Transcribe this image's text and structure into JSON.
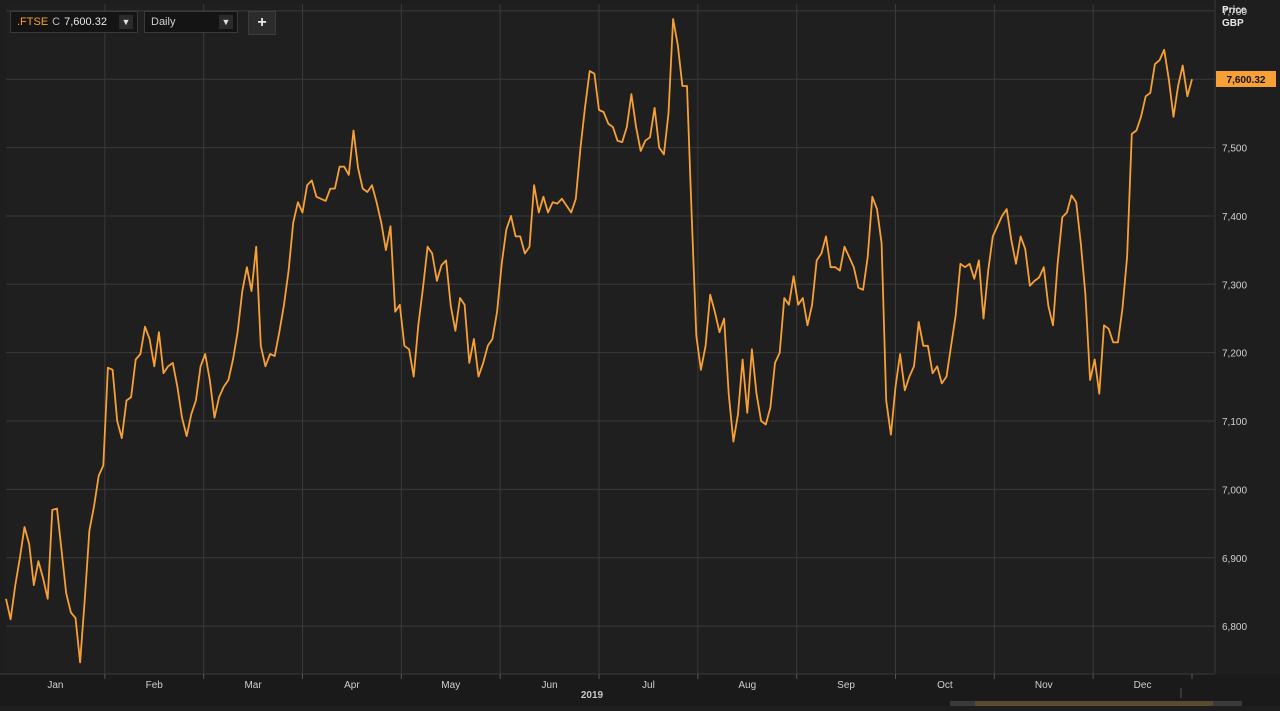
{
  "toolbar": {
    "instrument": ".FTSE",
    "close_tag": "C",
    "close_value": "7,600.32",
    "period": "Daily",
    "add_label": "+"
  },
  "colors": {
    "background": "#1e1e1e",
    "grid": "#3a3a3a",
    "series": "#f7a035",
    "label_bg": "#f7a035"
  },
  "chart_data": {
    "type": "line",
    "axis_title": "Price",
    "axis_unit": "GBP",
    "year_label": "2019",
    "yticks": [
      "6,800",
      "6,900",
      "7,000",
      "7,100",
      "7,200",
      "7,300",
      "7,400",
      "7,500",
      "7,600",
      "7,700"
    ],
    "ylim": [
      6730,
      7710
    ],
    "months": [
      "Jan",
      "Feb",
      "Mar",
      "Apr",
      "May",
      "Jun",
      "Jul",
      "Aug",
      "Sep",
      "Oct",
      "Nov",
      "Dec"
    ],
    "last_value_label": "7,600.32",
    "grid": true,
    "series": [
      {
        "values": [
          6840,
          6810,
          6860,
          6900,
          6945,
          6920,
          6860,
          6895,
          6870,
          6840,
          6970,
          6972,
          6910,
          6848,
          6820,
          6812,
          6747,
          6840,
          6940,
          6975,
          7020,
          7035,
          7178,
          7175,
          7100,
          7075,
          7130,
          7135,
          7190,
          7198,
          7238,
          7220,
          7180,
          7230,
          7170,
          7180,
          7185,
          7150,
          7105,
          7078,
          7110,
          7130,
          7180,
          7198,
          7160,
          7105,
          7135,
          7150,
          7160,
          7190,
          7230,
          7290,
          7325,
          7290,
          7355,
          7210,
          7180,
          7198,
          7195,
          7230,
          7270,
          7320,
          7390,
          7420,
          7405,
          7445,
          7452,
          7428,
          7425,
          7422,
          7440,
          7440,
          7472,
          7472,
          7460,
          7525,
          7470,
          7440,
          7435,
          7445,
          7420,
          7390,
          7350,
          7385,
          7260,
          7270,
          7210,
          7205,
          7165,
          7240,
          7295,
          7355,
          7345,
          7305,
          7328,
          7335,
          7268,
          7232,
          7280,
          7270,
          7185,
          7220,
          7165,
          7185,
          7210,
          7220,
          7260,
          7330,
          7380,
          7400,
          7370,
          7370,
          7345,
          7355,
          7445,
          7405,
          7428,
          7405,
          7420,
          7418,
          7425,
          7415,
          7405,
          7425,
          7500,
          7560,
          7612,
          7608,
          7555,
          7552,
          7535,
          7530,
          7510,
          7508,
          7530,
          7578,
          7530,
          7495,
          7510,
          7515,
          7558,
          7500,
          7490,
          7550,
          7688,
          7650,
          7590,
          7590,
          7400,
          7225,
          7175,
          7210,
          7285,
          7260,
          7230,
          7250,
          7140,
          7070,
          7110,
          7190,
          7112,
          7205,
          7140,
          7100,
          7095,
          7120,
          7185,
          7200,
          7280,
          7270,
          7312,
          7270,
          7280,
          7240,
          7270,
          7335,
          7345,
          7370,
          7325,
          7325,
          7320,
          7355,
          7340,
          7325,
          7295,
          7292,
          7340,
          7428,
          7410,
          7360,
          7130,
          7080,
          7150,
          7198,
          7145,
          7165,
          7180,
          7245,
          7210,
          7210,
          7170,
          7180,
          7155,
          7165,
          7210,
          7255,
          7330,
          7325,
          7330,
          7308,
          7335,
          7250,
          7320,
          7370,
          7385,
          7400,
          7410,
          7365,
          7330,
          7370,
          7352,
          7298,
          7305,
          7310,
          7325,
          7268,
          7240,
          7330,
          7398,
          7405,
          7430,
          7420,
          7360,
          7285,
          7160,
          7190,
          7140,
          7240,
          7235,
          7215,
          7215,
          7265,
          7340,
          7520,
          7525,
          7545,
          7575,
          7580,
          7622,
          7628,
          7643,
          7600,
          7545,
          7590,
          7620,
          7575,
          7600
        ]
      }
    ]
  }
}
